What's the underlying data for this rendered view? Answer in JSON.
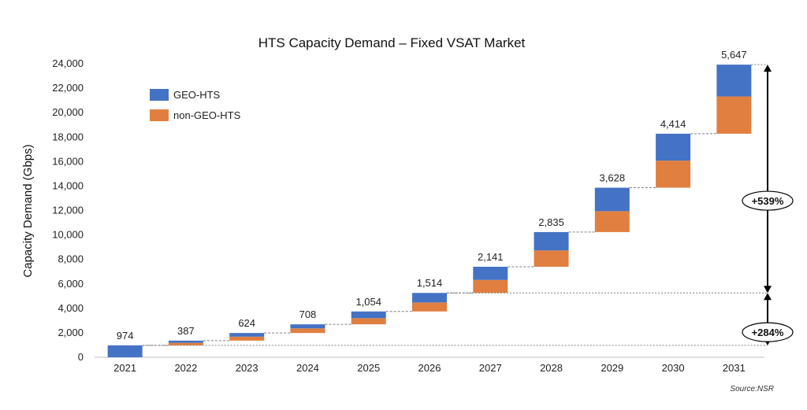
{
  "chart_data": {
    "type": "bar",
    "subtype": "waterfall-stacked",
    "title": "HTS Capacity Demand – Fixed VSAT Market",
    "ylabel": "Capacity Demand (Gbps)",
    "xlabel": "",
    "ylim": [
      0,
      24000
    ],
    "ytick_labels": [
      "0",
      "2,000",
      "4,000",
      "6,000",
      "8,000",
      "10,000",
      "12,000",
      "14,000",
      "16,000",
      "18,000",
      "20,000",
      "22,000",
      "24,000"
    ],
    "ytick_values": [
      0,
      2000,
      4000,
      6000,
      8000,
      10000,
      12000,
      14000,
      16000,
      18000,
      20000,
      22000,
      24000
    ],
    "categories": [
      "2021",
      "2022",
      "2023",
      "2024",
      "2025",
      "2026",
      "2027",
      "2028",
      "2029",
      "2030",
      "2031"
    ],
    "increments": [
      974,
      387,
      624,
      708,
      1054,
      1514,
      2141,
      2835,
      3628,
      4414,
      5647
    ],
    "increment_labels": [
      "974",
      "387",
      "624",
      "708",
      "1,054",
      "1,514",
      "2,141",
      "2,835",
      "3,628",
      "4,414",
      "5,647"
    ],
    "series": [
      {
        "name": "GEO-HTS",
        "color": "#4472C4",
        "values": [
          974,
          180,
          300,
          330,
          550,
          780,
          1080,
          1500,
          1920,
          2200,
          2600
        ]
      },
      {
        "name": "non-GEO-HTS",
        "color": "#E07F3F",
        "values": [
          0,
          207,
          324,
          378,
          504,
          734,
          1061,
          1335,
          1708,
          2214,
          3047
        ]
      }
    ],
    "legend_position": "top-left",
    "grid": false,
    "annotations": [
      {
        "text": "+539%",
        "from_category": "2026",
        "to_category": "2031"
      },
      {
        "text": "+284%",
        "from_category": "2021",
        "to_category": "2026"
      }
    ],
    "source": "Source:NSR"
  }
}
